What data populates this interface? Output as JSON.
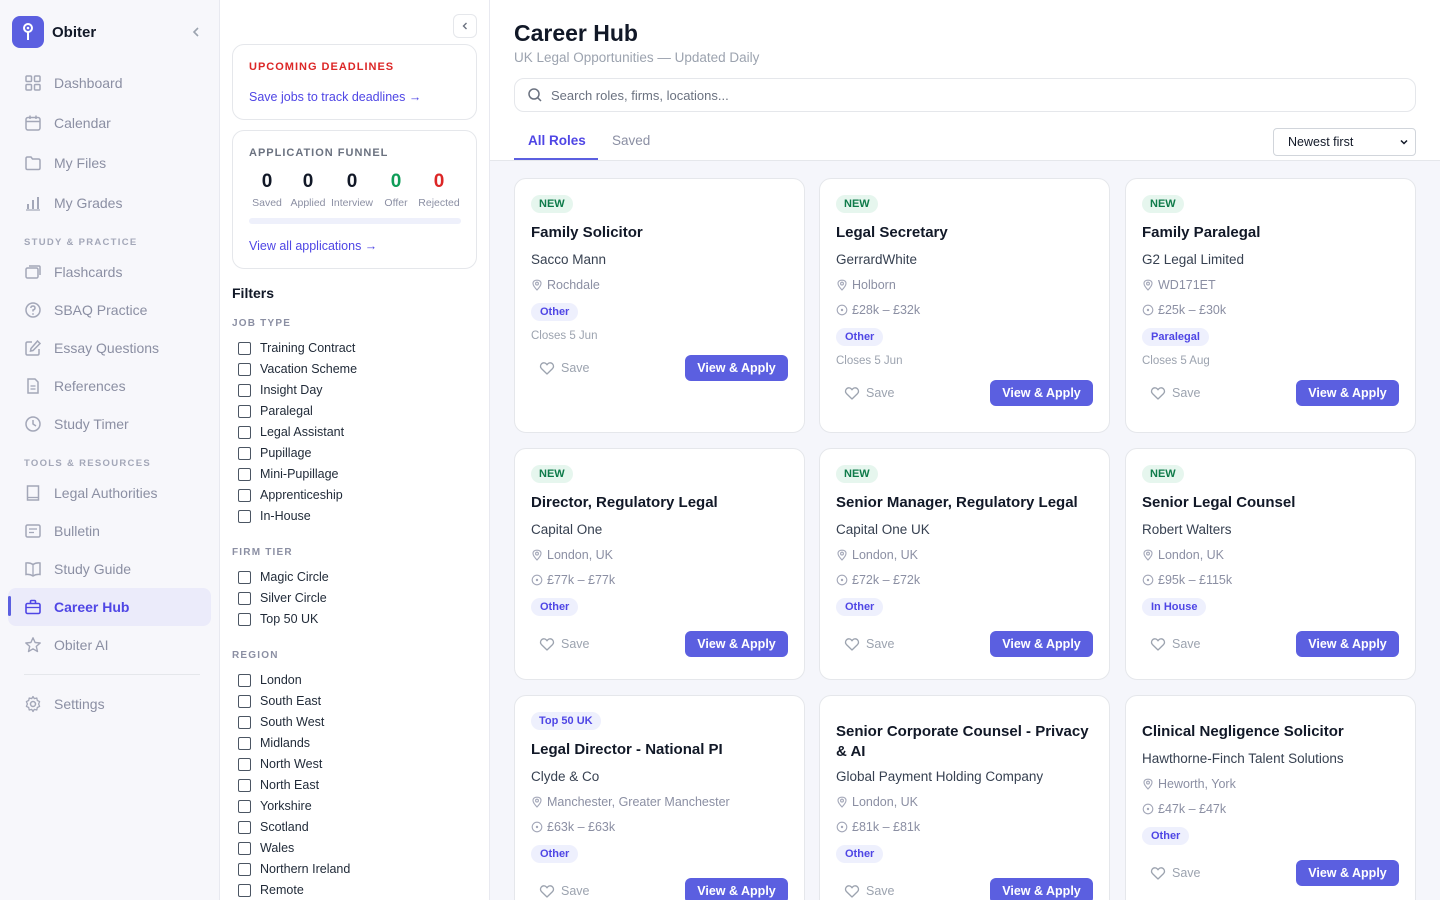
{
  "app": {
    "name": "Obiter"
  },
  "sidebar": {
    "items": [
      {
        "label": "Dashboard"
      },
      {
        "label": "Calendar"
      },
      {
        "label": "My Files"
      },
      {
        "label": "My Grades"
      }
    ],
    "section_study": "STUDY & PRACTICE",
    "study_items": [
      {
        "label": "Flashcards"
      },
      {
        "label": "SBAQ Practice"
      },
      {
        "label": "Essay Questions"
      },
      {
        "label": "References"
      },
      {
        "label": "Study Timer"
      }
    ],
    "section_tools": "TOOLS & RESOURCES",
    "tools_items": [
      {
        "label": "Legal Authorities"
      },
      {
        "label": "Bulletin"
      },
      {
        "label": "Study Guide"
      },
      {
        "label": "Career Hub"
      },
      {
        "label": "Obiter AI"
      }
    ],
    "settings_label": "Settings",
    "accent_color": "#5b5fe0"
  },
  "deadlines": {
    "title": "UPCOMING DEADLINES",
    "link": "Save jobs to track deadlines →"
  },
  "funnel": {
    "title": "APPLICATION FUNNEL",
    "stats": [
      {
        "value": "0",
        "label": "Saved",
        "color": "#111827"
      },
      {
        "value": "0",
        "label": "Applied",
        "color": "#111827"
      },
      {
        "value": "0",
        "label": "Interview",
        "color": "#111827"
      },
      {
        "value": "0",
        "label": "Offer",
        "color": "#0f9d58"
      },
      {
        "value": "0",
        "label": "Rejected",
        "color": "#dc2626"
      }
    ],
    "link": "View all applications →"
  },
  "filters": {
    "title": "Filters",
    "job_type": {
      "title": "JOB TYPE",
      "options": [
        "Training Contract",
        "Vacation Scheme",
        "Insight Day",
        "Paralegal",
        "Legal Assistant",
        "Pupillage",
        "Mini-Pupillage",
        "Apprenticeship",
        "In-House"
      ]
    },
    "firm_tier": {
      "title": "FIRM TIER",
      "options": [
        "Magic Circle",
        "Silver Circle",
        "Top 50 UK"
      ]
    },
    "region": {
      "title": "REGION",
      "options": [
        "London",
        "South East",
        "South West",
        "Midlands",
        "North West",
        "North East",
        "Yorkshire",
        "Scotland",
        "Wales",
        "Northern Ireland",
        "Remote"
      ]
    }
  },
  "main": {
    "title": "Career Hub",
    "subtitle": "UK Legal Opportunities — Updated Daily",
    "search_placeholder": "Search roles, firms, locations...",
    "tabs": [
      {
        "label": "All Roles"
      },
      {
        "label": "Saved"
      }
    ],
    "sort": "Newest first",
    "save_label": "Save",
    "apply_label": "View & Apply"
  },
  "jobs": [
    {
      "badge": "NEW",
      "title": "Family Solicitor",
      "firm": "Sacco Mann",
      "location": "Rochdale",
      "salary": "",
      "tag": "Other",
      "closes": "Closes 5 Jun"
    },
    {
      "badge": "NEW",
      "title": "Legal Secretary",
      "firm": "GerrardWhite",
      "location": "Holborn",
      "salary": "£28k – £32k",
      "tag": "Other",
      "closes": "Closes 5 Jun"
    },
    {
      "badge": "NEW",
      "title": "Family Paralegal",
      "firm": "G2 Legal Limited",
      "location": "WD171ET",
      "salary": "£25k – £30k",
      "tag": "Paralegal",
      "closes": "Closes 5 Aug"
    },
    {
      "badge": "NEW",
      "title": "Director, Regulatory Legal",
      "firm": "Capital One",
      "location": "London, UK",
      "salary": "£77k – £77k",
      "tag": "Other",
      "closes": ""
    },
    {
      "badge": "NEW",
      "title": "Senior Manager, Regulatory Legal",
      "firm": "Capital One UK",
      "location": "London, UK",
      "salary": "£72k – £72k",
      "tag": "Other",
      "closes": ""
    },
    {
      "badge": "NEW",
      "title": "Senior Legal Counsel",
      "firm": "Robert Walters",
      "location": "London, UK",
      "salary": "£95k – £115k",
      "tag": "In House",
      "closes": ""
    },
    {
      "badge": "Top 50 UK",
      "title": "Legal Director - National PI",
      "firm": "Clyde & Co",
      "location": "Manchester, Greater Manchester",
      "salary": "£63k – £63k",
      "tag": "Other",
      "closes": ""
    },
    {
      "badge": "",
      "title": "Senior Corporate Counsel - Privacy & AI",
      "firm": "Global Payment Holding Company",
      "location": "London, UK",
      "salary": "£81k – £81k",
      "tag": "Other",
      "closes": ""
    },
    {
      "badge": "",
      "title": "Clinical Negligence Solicitor",
      "firm": "Hawthorne-Finch Talent Solutions",
      "location": "Heworth, York",
      "salary": "£47k – £47k",
      "tag": "Other",
      "closes": ""
    }
  ]
}
